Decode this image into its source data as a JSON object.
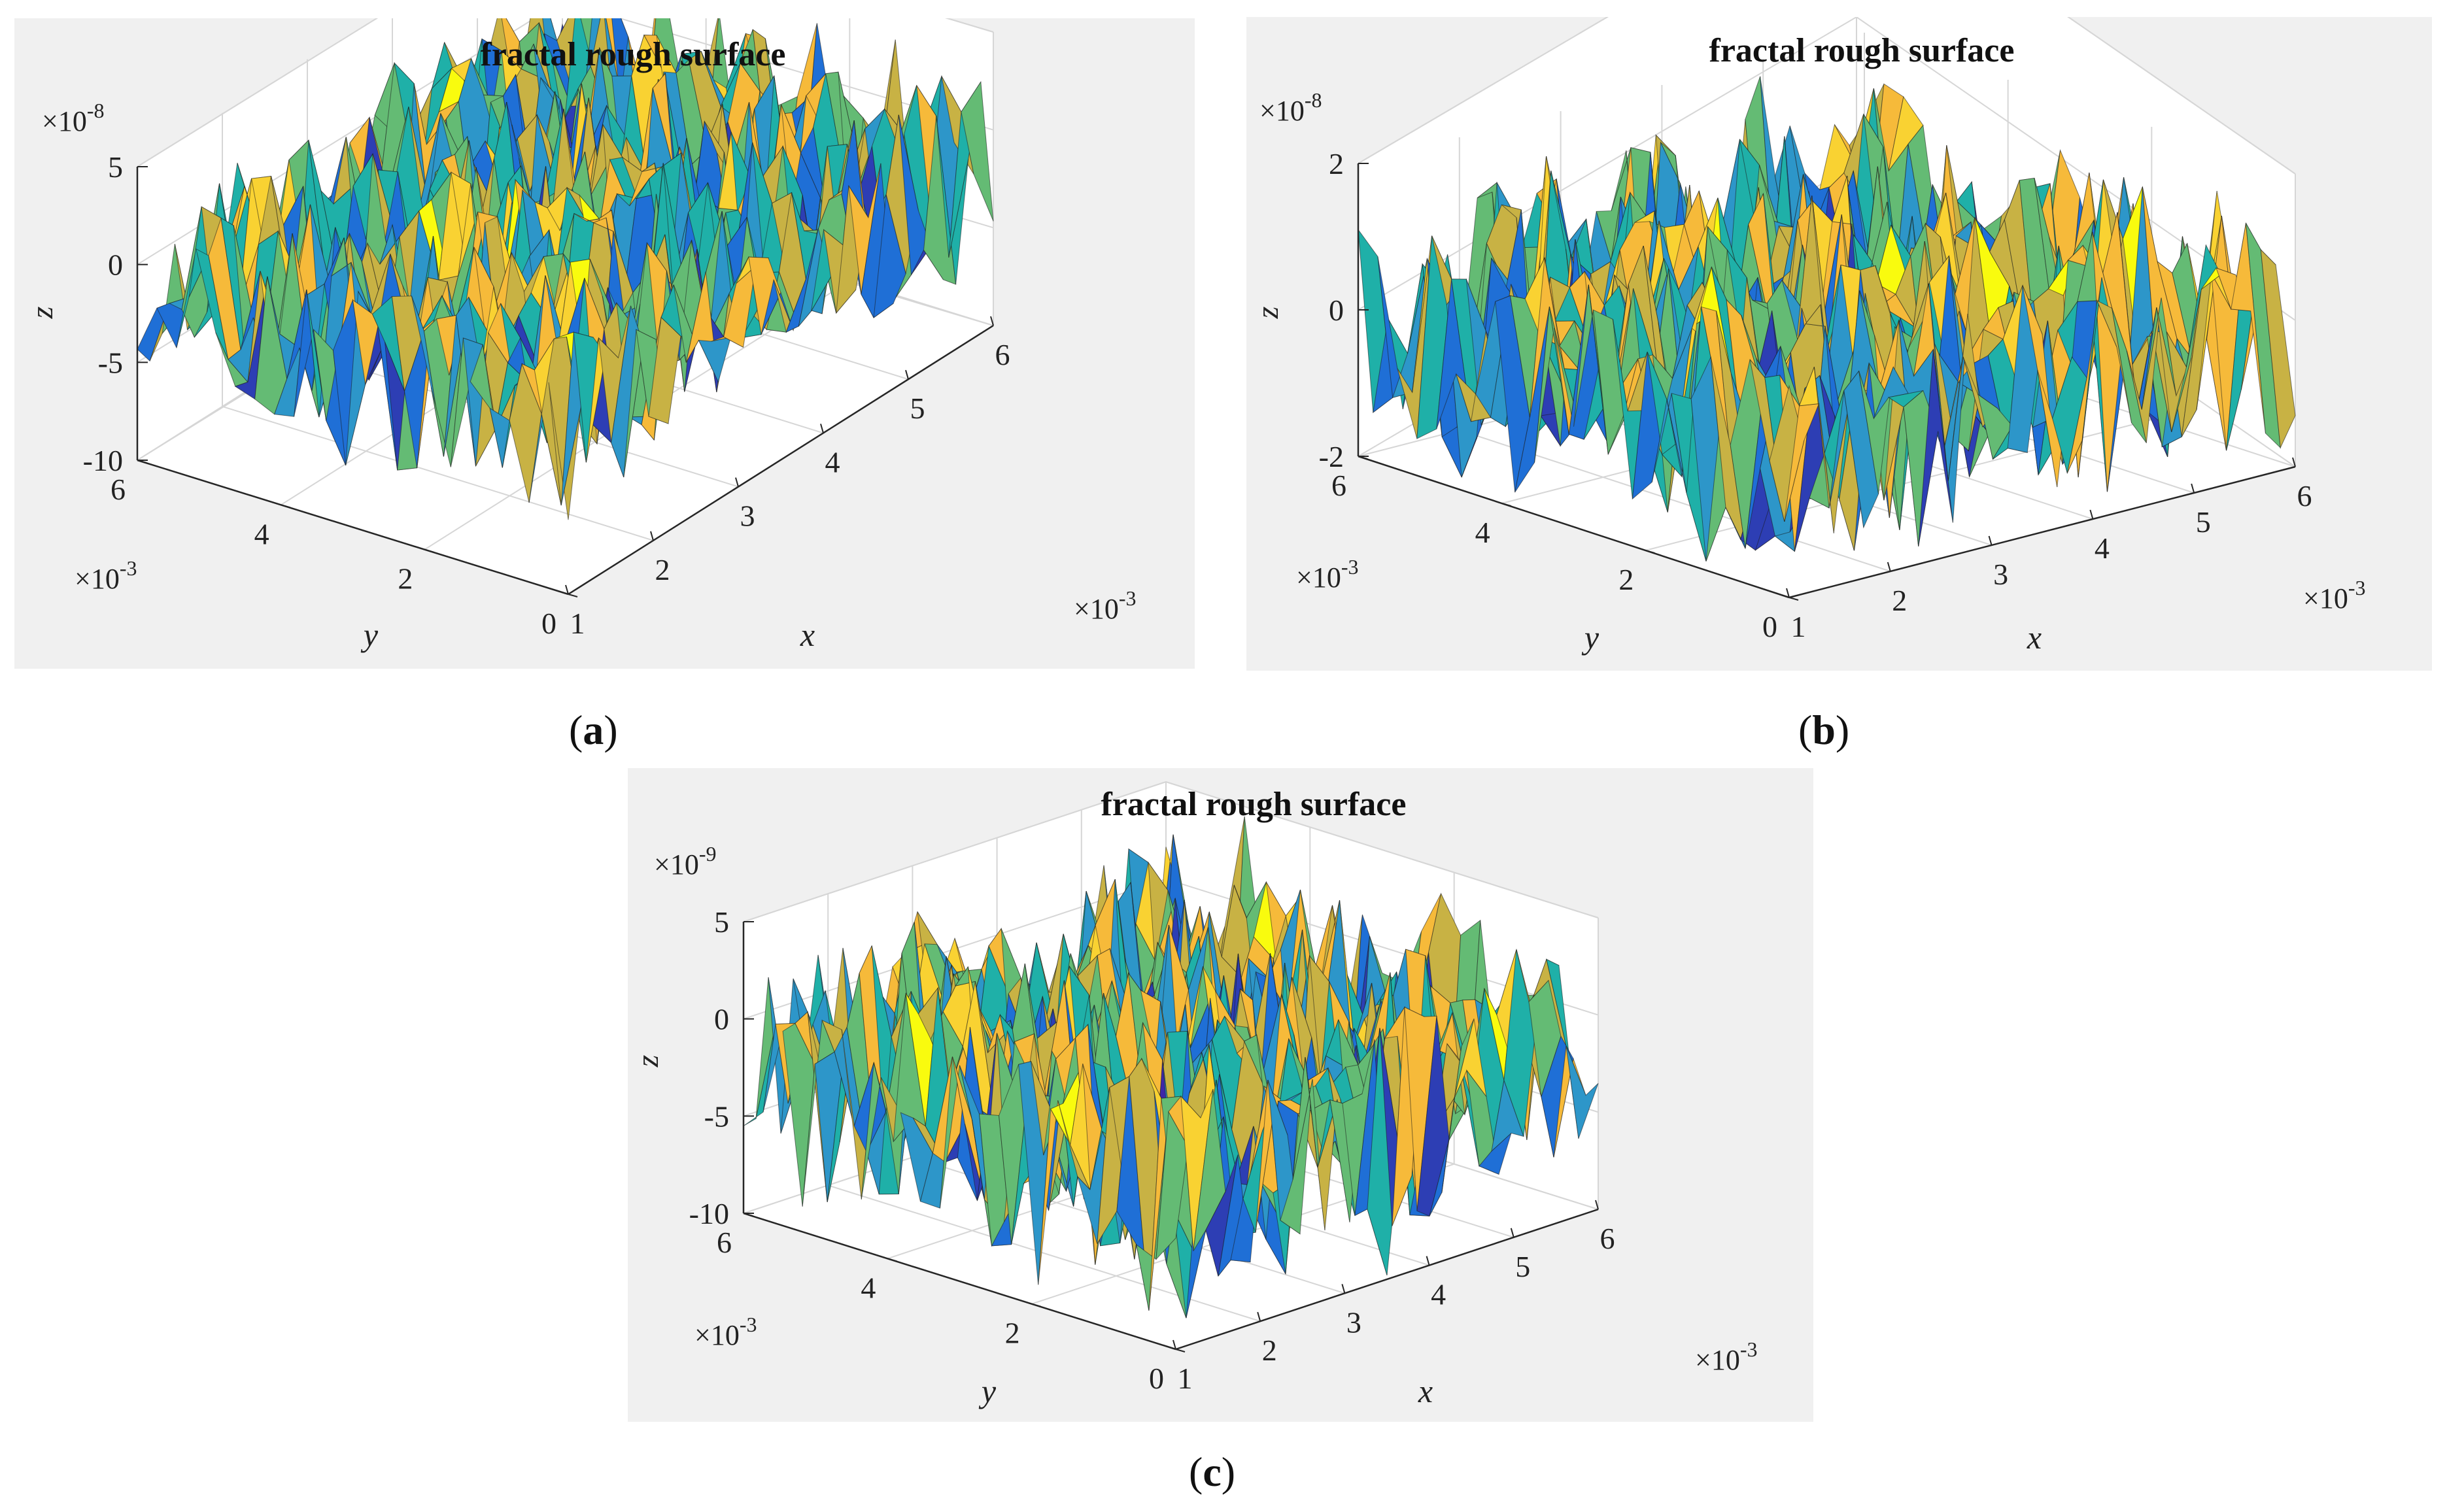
{
  "figure": {
    "subfigure_labels": [
      "a",
      "b",
      "c"
    ]
  },
  "palette": [
    "#3e26a8",
    "#2d3eb4",
    "#1f6fd6",
    "#2d96c9",
    "#1fb0a8",
    "#64bb74",
    "#c8b244",
    "#f6ba3a",
    "#f9d232",
    "#f9fb0e"
  ],
  "chart_data": [
    {
      "type": "surface3d",
      "title": "fractal rough surface",
      "xlabel": "x",
      "ylabel": "y",
      "zlabel": "z",
      "x_ticks": [
        "1",
        "2",
        "3",
        "4",
        "5",
        "6"
      ],
      "y_ticks": [
        "0",
        "2",
        "4",
        "6"
      ],
      "z_ticks": [
        "-10",
        "-5",
        "0",
        "5"
      ],
      "xlim": [
        1,
        6
      ],
      "ylim": [
        0,
        6
      ],
      "zlim": [
        -10,
        5
      ],
      "x_exponent": "×10",
      "x_exponent_power": "-3",
      "y_exponent": "×10",
      "y_exponent_power": "-3",
      "z_exponent": "×10",
      "z_exponent_power": "-8",
      "data_units": {
        "x": 0.001,
        "y": 0.001,
        "z": 1e-08
      },
      "colormap": "parula",
      "surface_z_range": [
        -9,
        5
      ],
      "seed": 11
    },
    {
      "type": "surface3d",
      "title": "fractal rough surface",
      "xlabel": "x",
      "ylabel": "y",
      "zlabel": "z",
      "x_ticks": [
        "1",
        "2",
        "3",
        "4",
        "5",
        "6"
      ],
      "y_ticks": [
        "0",
        "2",
        "4",
        "6"
      ],
      "z_ticks": [
        "-2",
        "0",
        "2"
      ],
      "xlim": [
        1,
        6
      ],
      "ylim": [
        0,
        6
      ],
      "zlim": [
        -2,
        2
      ],
      "x_exponent": "×10",
      "x_exponent_power": "-3",
      "y_exponent": "×10",
      "y_exponent_power": "-3",
      "z_exponent": "×10",
      "z_exponent_power": "-8",
      "data_units": {
        "x": 0.001,
        "y": 0.001,
        "z": 1e-08
      },
      "colormap": "parula",
      "surface_z_range": [
        -2.6,
        2.2
      ],
      "seed": 29
    },
    {
      "type": "surface3d",
      "title": "fractal rough surface",
      "xlabel": "x",
      "ylabel": "y",
      "zlabel": "z",
      "x_ticks": [
        "1",
        "2",
        "3",
        "4",
        "5",
        "6"
      ],
      "y_ticks": [
        "0",
        "2",
        "4",
        "6"
      ],
      "z_ticks": [
        "-10",
        "-5",
        "0",
        "5"
      ],
      "xlim": [
        1,
        6
      ],
      "ylim": [
        0,
        6
      ],
      "zlim": [
        -10,
        5
      ],
      "x_exponent": "×10",
      "x_exponent_power": "-3",
      "y_exponent": "×10",
      "y_exponent_power": "-3",
      "z_exponent": "×10",
      "z_exponent_power": "-9",
      "data_units": {
        "x": 0.001,
        "y": 0.001,
        "z": 1e-09
      },
      "colormap": "parula",
      "surface_z_range": [
        -11,
        6
      ],
      "seed": 47
    }
  ]
}
